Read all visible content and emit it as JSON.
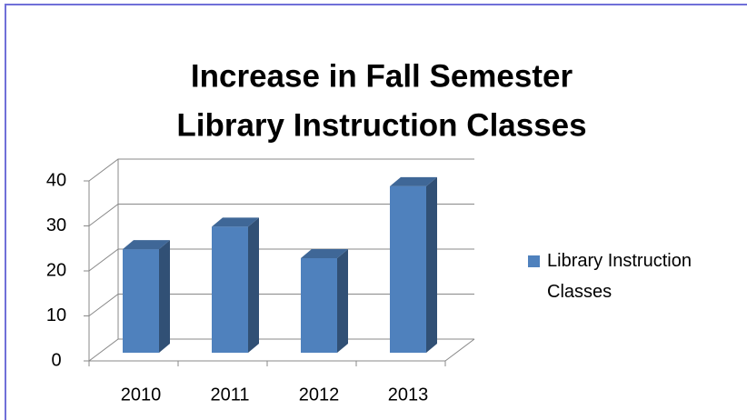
{
  "chart_data": {
    "type": "bar3d",
    "title": [
      "Increase in Fall Semester",
      "Library Instruction Classes"
    ],
    "categories": [
      "2010",
      "2011",
      "2012",
      "2013"
    ],
    "series": [
      {
        "name": "Library Instruction Classes",
        "color": "#4f81bd",
        "values": [
          23,
          28,
          21,
          37
        ]
      }
    ],
    "ylim": [
      0,
      40
    ],
    "yticks": [
      0,
      10,
      20,
      30,
      40
    ],
    "grid": true,
    "legend": "right"
  }
}
